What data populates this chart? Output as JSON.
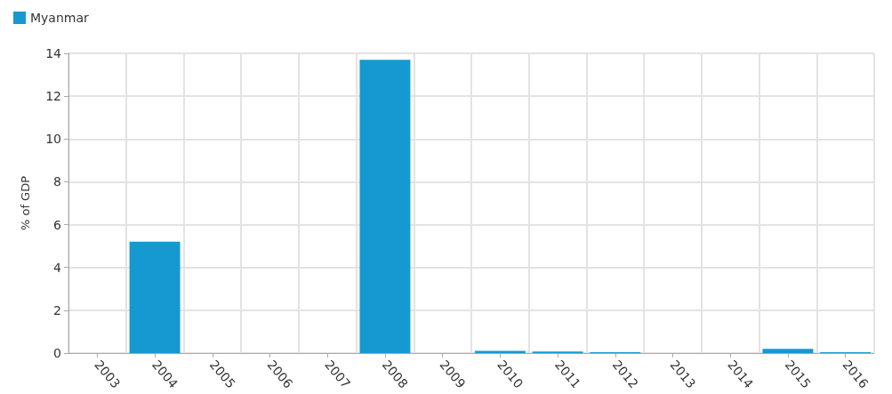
{
  "chart_data": {
    "type": "bar",
    "ylabel": "% of GDP",
    "categories": [
      "2003",
      "2004",
      "2005",
      "2006",
      "2007",
      "2008",
      "2009",
      "2010",
      "2011",
      "2012",
      "2013",
      "2014",
      "2015",
      "2016"
    ],
    "series": [
      {
        "name": "Myanmar",
        "color": "#1599d0",
        "values": [
          null,
          5.2,
          null,
          null,
          null,
          13.7,
          null,
          0.1,
          0.07,
          0.04,
          null,
          null,
          0.2,
          0.04
        ]
      }
    ],
    "ylim": [
      0,
      14
    ],
    "yticks": [
      0,
      2,
      4,
      6,
      8,
      10,
      12,
      14
    ],
    "grid": true,
    "legend": "top left"
  }
}
